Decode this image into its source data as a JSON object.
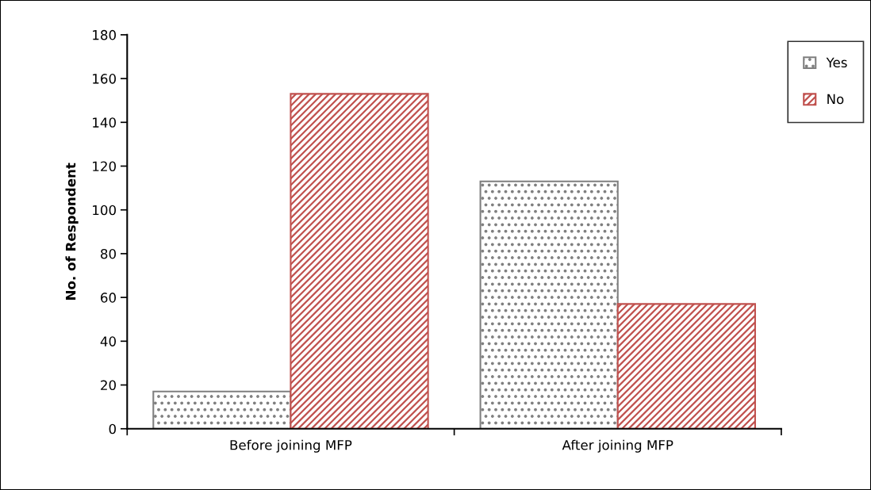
{
  "chart_data": {
    "type": "bar",
    "ylabel": "No. of Respondent",
    "categories": [
      "Before joining MFP",
      "After joining MFP"
    ],
    "series": [
      {
        "name": "Yes",
        "color": "#7f7f7f",
        "values": [
          17,
          113
        ]
      },
      {
        "name": "No",
        "color": "#c0504d",
        "values": [
          153,
          57
        ]
      }
    ],
    "ylim": [
      0,
      180
    ],
    "yticks": [
      0,
      20,
      40,
      60,
      80,
      100,
      120,
      140,
      160,
      180
    ],
    "grid": false,
    "legend": "top right"
  }
}
